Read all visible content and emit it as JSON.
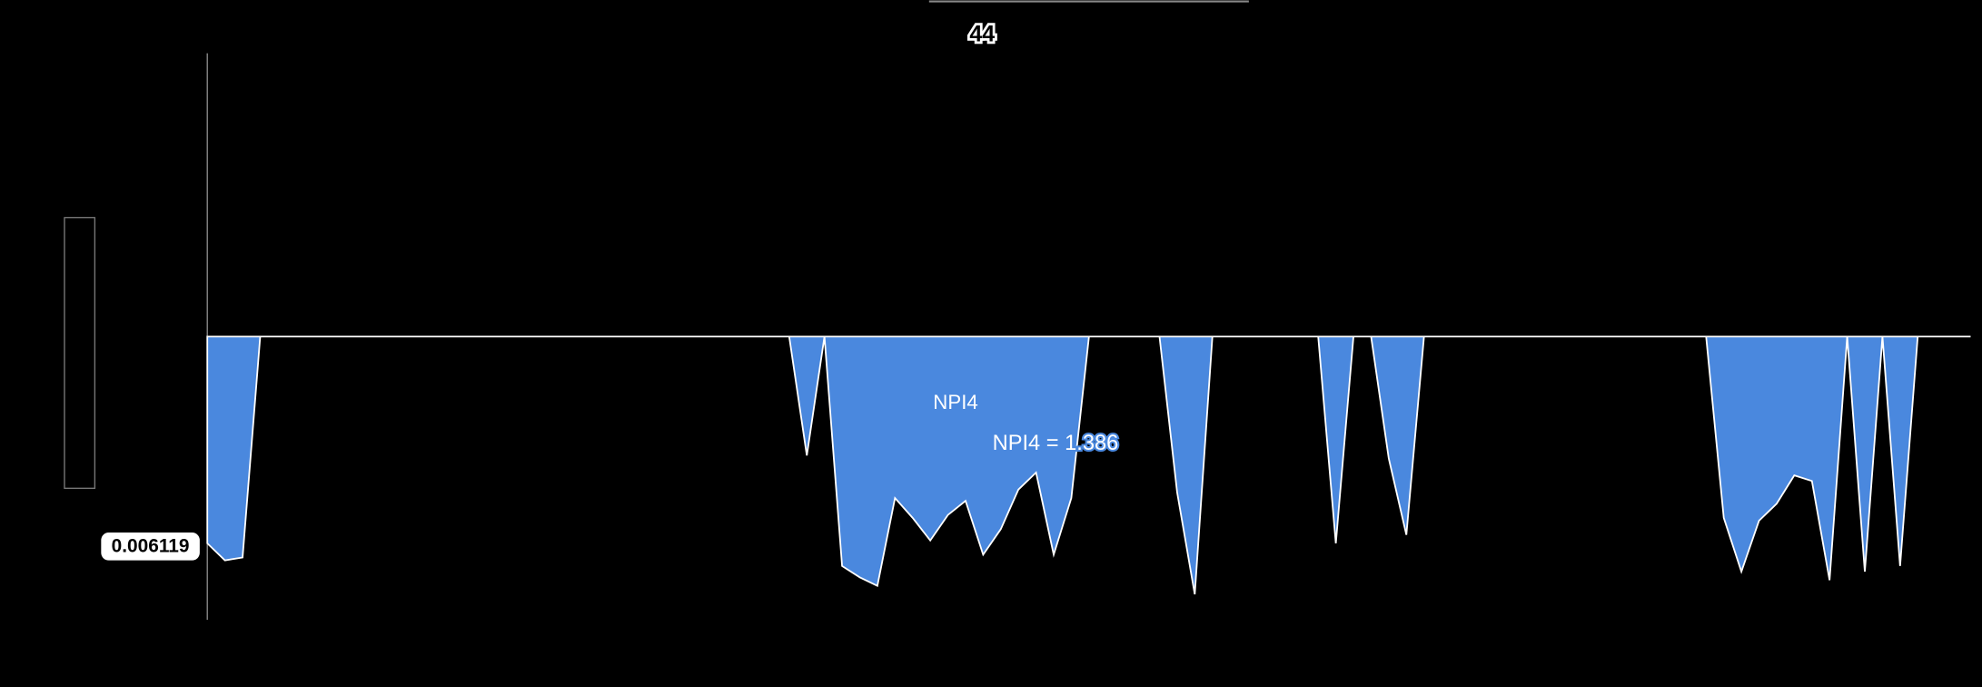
{
  "chart_data": {
    "type": "area",
    "title": "44",
    "series": [
      {
        "name": "NPI4",
        "color": "#4a88de",
        "values": [
          -0.73,
          -0.79,
          -0.78,
          0,
          0,
          0,
          0,
          0,
          0,
          0,
          0,
          0,
          0,
          0,
          0,
          0,
          0,
          0,
          0,
          0,
          0,
          0,
          0,
          0,
          0,
          0,
          0,
          0,
          0,
          0,
          0,
          0,
          0,
          0,
          -0.42,
          0,
          -0.81,
          -0.85,
          -0.88,
          -0.57,
          -0.64,
          -0.72,
          -0.63,
          -0.58,
          -0.77,
          -0.68,
          -0.54,
          -0.48,
          -0.77,
          -0.57,
          0,
          0,
          0,
          0,
          0,
          -0.55,
          -0.91,
          0,
          0,
          0,
          0,
          0,
          0,
          0,
          -0.73,
          0,
          0,
          -0.43,
          -0.7,
          0,
          0,
          0,
          0,
          0,
          0,
          0,
          0,
          0,
          0,
          0,
          0,
          0,
          0,
          0,
          0,
          0,
          -0.64,
          -0.83,
          -0.65,
          -0.59,
          -0.49,
          -0.51,
          -0.86,
          0,
          -0.83,
          0,
          -0.81,
          0,
          0,
          0,
          0
        ]
      }
    ],
    "ylim": [
      -1,
      1
    ],
    "annotations": [
      "0.006119",
      "NPI4 = 1.386"
    ]
  }
}
